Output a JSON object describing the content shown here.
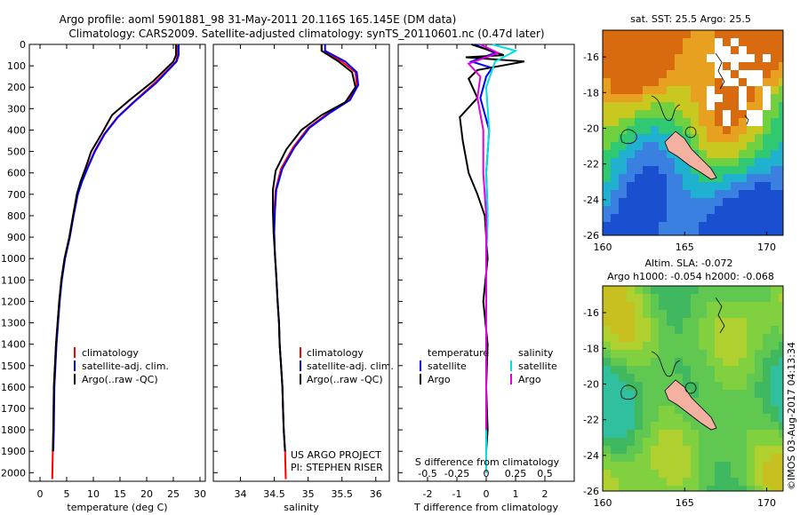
{
  "header": {
    "line1": "Argo profile: aoml 5901881_98 31-May-2011 20.116S 165.145E (DM data)",
    "line2": "Climatology: CARS2009. Satellite-adjusted climatology: synTS_20110601.nc (0.47d later)"
  },
  "colors": {
    "climatology": "#ff0000",
    "satellite": "#0000ff",
    "argo": "#000000",
    "sal_satellite": "#00e0e0",
    "sal_argo": "#e000e0"
  },
  "chart_data": [
    {
      "type": "line",
      "xlabel": "temperature (deg C)",
      "xlim": [
        -2,
        31
      ],
      "ylim": [
        2040,
        0
      ],
      "xticks": [
        0,
        5,
        10,
        15,
        20,
        25,
        30
      ],
      "yticks": [
        0,
        100,
        200,
        300,
        400,
        500,
        600,
        700,
        800,
        900,
        1000,
        1100,
        1200,
        1300,
        1400,
        1500,
        1600,
        1700,
        1800,
        1900,
        2000
      ],
      "legend": [
        "climatology",
        "satellite-adj. clim.",
        "Argo(..raw -QC)"
      ],
      "legend_position": "lower-center",
      "series": [
        {
          "name": "climatology",
          "color": "#ff0000",
          "x": [
            25.8,
            25.8,
            25.5,
            21.5,
            17.5,
            14.5,
            12.0,
            10.2,
            8.8,
            7.8,
            7.0,
            6.2,
            5.5,
            4.6,
            4.0,
            3.6,
            3.3,
            3.0,
            2.8,
            2.6,
            2.5,
            2.4,
            2.3
          ],
          "y": [
            0,
            50,
            80,
            180,
            270,
            340,
            420,
            500,
            580,
            640,
            700,
            800,
            900,
            1000,
            1100,
            1200,
            1300,
            1400,
            1500,
            1600,
            1800,
            1900,
            2030
          ]
        },
        {
          "name": "satellite-adj. clim.",
          "color": "#0000ff",
          "x": [
            26.0,
            26.0,
            25.6,
            21.8,
            17.6,
            14.6,
            12.1,
            10.3,
            8.9,
            7.9,
            7.1,
            6.3,
            5.6,
            4.7,
            4.1,
            3.7,
            3.4,
            3.1,
            2.9,
            2.7,
            2.6,
            2.5
          ],
          "y": [
            0,
            50,
            80,
            180,
            270,
            340,
            420,
            500,
            580,
            640,
            700,
            800,
            900,
            1000,
            1100,
            1200,
            1300,
            1400,
            1500,
            1600,
            1800,
            1900
          ]
        },
        {
          "name": "Argo(..raw -QC)",
          "color": "#000000",
          "x": [
            25.5,
            25.5,
            25.0,
            21.3,
            16.8,
            13.5,
            11.5,
            9.6,
            8.5,
            7.6,
            6.9,
            6.2,
            5.5,
            4.6,
            4.0,
            3.6,
            3.3,
            3.0,
            2.8,
            2.6,
            2.5,
            2.4
          ],
          "y": [
            0,
            50,
            80,
            170,
            260,
            330,
            420,
            500,
            580,
            640,
            700,
            800,
            900,
            1000,
            1100,
            1200,
            1300,
            1400,
            1500,
            1600,
            1800,
            1900
          ]
        }
      ]
    },
    {
      "type": "line",
      "xlabel": "salinity",
      "xlim": [
        33.6,
        36.2
      ],
      "ylim": [
        2040,
        0
      ],
      "xticks": [
        34,
        34.5,
        35,
        35.5,
        36
      ],
      "legend": [
        "climatology",
        "satellite-adj. clim.",
        "Argo(..raw -QC)"
      ],
      "legend_position": "lower-center",
      "annotations": [
        "US ARGO PROJECT",
        "PI: STEPHEN RISER"
      ],
      "series": [
        {
          "name": "climatology",
          "color": "#ff0000",
          "x": [
            35.2,
            35.2,
            35.5,
            35.7,
            35.72,
            35.6,
            35.3,
            35.0,
            34.78,
            34.6,
            34.52,
            34.5,
            34.5,
            34.51,
            34.53,
            34.55,
            34.57,
            34.58,
            34.6,
            34.62,
            34.63,
            34.64,
            34.66,
            34.67
          ],
          "y": [
            0,
            30,
            80,
            130,
            190,
            260,
            320,
            390,
            480,
            580,
            680,
            780,
            880,
            980,
            1080,
            1200,
            1300,
            1400,
            1500,
            1600,
            1700,
            1800,
            1900,
            2030
          ]
        },
        {
          "name": "satellite-adj. clim.",
          "color": "#0000ff",
          "x": [
            35.25,
            35.25,
            35.55,
            35.72,
            35.74,
            35.62,
            35.32,
            35.02,
            34.8,
            34.62,
            34.53,
            34.51,
            34.5,
            34.51,
            34.53,
            34.55,
            34.57,
            34.58,
            34.6,
            34.62,
            34.63,
            34.64,
            34.66
          ],
          "y": [
            0,
            30,
            80,
            130,
            190,
            260,
            320,
            390,
            480,
            580,
            680,
            780,
            880,
            980,
            1080,
            1200,
            1300,
            1400,
            1500,
            1600,
            1700,
            1800,
            1900
          ]
        },
        {
          "name": "Argo(..raw -QC)",
          "color": "#000000",
          "x": [
            35.2,
            35.2,
            35.45,
            35.65,
            35.7,
            35.55,
            35.2,
            34.9,
            34.68,
            34.52,
            34.48,
            34.48,
            34.49,
            34.51,
            34.53,
            34.55,
            34.57,
            34.58,
            34.6,
            34.62,
            34.63,
            34.64,
            34.66
          ],
          "y": [
            0,
            30,
            80,
            130,
            200,
            270,
            330,
            400,
            490,
            590,
            680,
            780,
            880,
            980,
            1080,
            1200,
            1300,
            1400,
            1500,
            1600,
            1700,
            1800,
            1900
          ]
        }
      ]
    },
    {
      "type": "line",
      "xlabel": "T difference from climatology",
      "xlabel_top": "S difference from climatology",
      "xlim": [
        -3,
        3
      ],
      "ylim": [
        2040,
        0
      ],
      "xticks": [
        -2,
        -1,
        0,
        1,
        2
      ],
      "xticks_top": [
        "-0.5",
        "-0.25",
        "0",
        "0.25",
        "0.5"
      ],
      "legend_titles": [
        "temperature",
        "salinity"
      ],
      "legend": [
        "satellite",
        "Argo",
        "satellite",
        "Argo"
      ],
      "series": [
        {
          "name": "temperature satellite",
          "color": "#0000ff",
          "x": [
            -0.4,
            0.3,
            -0.5,
            0.2,
            0.0,
            -0.2,
            0.1,
            0.0,
            0.05,
            0.0,
            0.0,
            0.0,
            0.0,
            0.0,
            0.0,
            0.0
          ],
          "y": [
            0,
            40,
            80,
            110,
            150,
            250,
            400,
            600,
            800,
            1000,
            1200,
            1400,
            1600,
            1800,
            1900,
            2000
          ]
        },
        {
          "name": "temperature Argo",
          "color": "#000000",
          "x": [
            -0.5,
            0.6,
            -0.7,
            1.3,
            -0.3,
            -0.6,
            -0.3,
            -0.9,
            -0.8,
            -0.6,
            -0.3,
            -0.05,
            0.0,
            0.05,
            -0.1,
            0.05,
            0.0,
            0.05,
            0.0,
            0.0
          ],
          "y": [
            0,
            50,
            60,
            80,
            120,
            160,
            250,
            340,
            450,
            600,
            700,
            800,
            900,
            1000,
            1200,
            1400,
            1600,
            1800,
            1900,
            2000
          ]
        },
        {
          "name": "salinity satellite",
          "color": "#00e0e0",
          "x": [
            0.2,
            1.0,
            0.3,
            0.2,
            0.0,
            0.1,
            0.0,
            0.05,
            0.0,
            0.0,
            0.0,
            0.0,
            0.0,
            0.0,
            0.0
          ],
          "y": [
            0,
            30,
            80,
            120,
            200,
            400,
            600,
            800,
            1000,
            1200,
            1400,
            1600,
            1800,
            1900,
            2000
          ]
        },
        {
          "name": "salinity Argo",
          "color": "#e000e0",
          "x": [
            -0.2,
            0.4,
            -0.6,
            -0.2,
            -0.3,
            -0.1,
            -0.1,
            0.0,
            0.0,
            0.0,
            0.0,
            0.0,
            0.0
          ],
          "y": [
            0,
            40,
            90,
            150,
            250,
            400,
            600,
            800,
            1000,
            1200,
            1400,
            1600,
            1800
          ]
        }
      ]
    },
    {
      "type": "heatmap",
      "title": "sat. SST: 25.5  Argo: 25.5",
      "xlim": [
        160,
        171
      ],
      "ylim": [
        -26,
        -14.5
      ],
      "xticks": [
        160,
        165,
        170
      ],
      "yticks": [
        -16,
        -18,
        -20,
        -22,
        -24,
        -26
      ]
    },
    {
      "type": "heatmap",
      "title": "Altim. SLA: -0.072",
      "subtitle": "Argo h1000: -0.054 h2000: -0.068",
      "xlim": [
        160,
        171
      ],
      "ylim": [
        -26,
        -14.5
      ],
      "xticks": [
        160,
        165,
        170
      ],
      "yticks": [
        -16,
        -18,
        -20,
        -22,
        -24,
        -26
      ]
    }
  ],
  "footer": {
    "credit": "©IMOS 03-Aug-2017 04:13:34"
  }
}
